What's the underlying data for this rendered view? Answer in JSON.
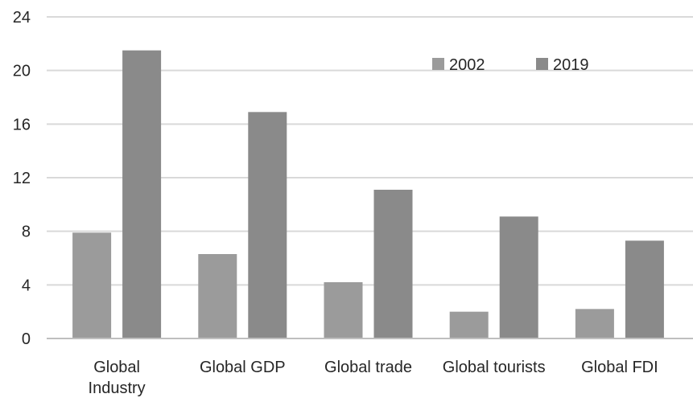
{
  "chart_data": {
    "type": "bar",
    "categories": [
      [
        "Global",
        "Industry"
      ],
      [
        "Global GDP"
      ],
      [
        "Global trade"
      ],
      [
        "Global tourists"
      ],
      [
        "Global FDI"
      ]
    ],
    "series": [
      {
        "name": "2002",
        "color": "#9b9b9b",
        "values": [
          7.9,
          6.3,
          4.2,
          2.0,
          2.2
        ]
      },
      {
        "name": "2019",
        "color": "#8a8a8a",
        "values": [
          21.5,
          16.9,
          11.1,
          9.1,
          7.3
        ]
      }
    ],
    "yticks": [
      "0",
      "4",
      "8",
      "12",
      "16",
      "20",
      "24"
    ],
    "ylim": [
      0,
      24
    ],
    "grid": true,
    "legend_position": "top-right",
    "title": "",
    "xlabel": "",
    "ylabel": ""
  }
}
